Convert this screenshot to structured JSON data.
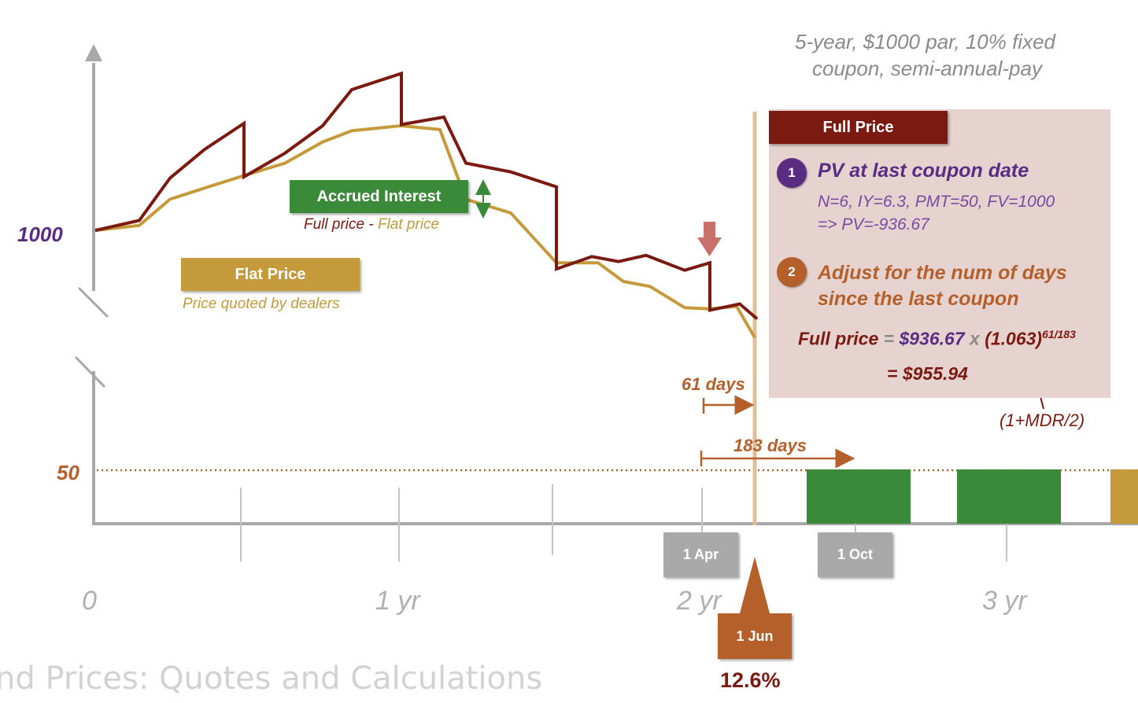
{
  "subtitle_line1": "5-year, $1000 par, 10% fixed",
  "subtitle_line2": "coupon, semi-annual-pay",
  "y_axis": {
    "label_1000": "1000",
    "label_50": "50"
  },
  "x_axis": {
    "ticks": [
      "0",
      "1 yr",
      "2 yr",
      "3 yr"
    ]
  },
  "accrued": {
    "label": "Accrued Interest",
    "caption_a": "Full price",
    "caption_sep": " - ",
    "caption_b": "Flat price"
  },
  "flat": {
    "label": "Flat Price",
    "caption": "Price quoted by dealers"
  },
  "full_panel": {
    "title": "Full Price",
    "step1": {
      "num": "1",
      "title": "PV at last coupon date",
      "line1": "N=6, IY=6.3, PMT=50, FV=1000",
      "line2": "=> PV=-936.67"
    },
    "step2": {
      "num": "2",
      "title_line1": "Adjust for the num of days",
      "title_line2": "since the last coupon"
    },
    "formula": {
      "lhs": "Full price",
      "eq": " = ",
      "pv": "$936.67",
      "times": " x ",
      "factor": "(1.063)",
      "exponent": "61/183",
      "result": "= $955.94"
    },
    "mdr_note": "(1+MDR/2)"
  },
  "days": {
    "short": "61 days",
    "long": "183 days"
  },
  "dates": {
    "apr": "1 Apr",
    "oct": "1 Oct",
    "jun": "1 Jun"
  },
  "rate": "12.6%",
  "footer_title": "nd Prices: Quotes and Calculations",
  "colors": {
    "full": "#7a1a10",
    "flat": "#c49a3a",
    "green": "#3a8a3a",
    "orange": "#b5602a",
    "purple": "#5a2d82",
    "panel": "#e6d3d0",
    "gray_box": "#a9a9a9"
  },
  "chart_data": {
    "type": "line",
    "series": [
      {
        "name": "Full price",
        "values": [
          1000,
          1008,
          1042,
          1065,
          1086,
          1043,
          1062,
          1084,
          1113,
          1126,
          1085,
          1091,
          1054,
          1047,
          1035,
          969,
          979,
          975,
          980,
          968,
          974,
          936,
          941,
          929
        ]
      },
      {
        "name": "Flat price",
        "values": [
          1000,
          1004,
          1025,
          1034,
          1038,
          1044,
          1054,
          1071,
          1080,
          1084,
          1081,
          1025,
          1014,
          974,
          974,
          959,
          955,
          938,
          937,
          939,
          914
        ]
      }
    ],
    "coupon_bars": 50
  }
}
